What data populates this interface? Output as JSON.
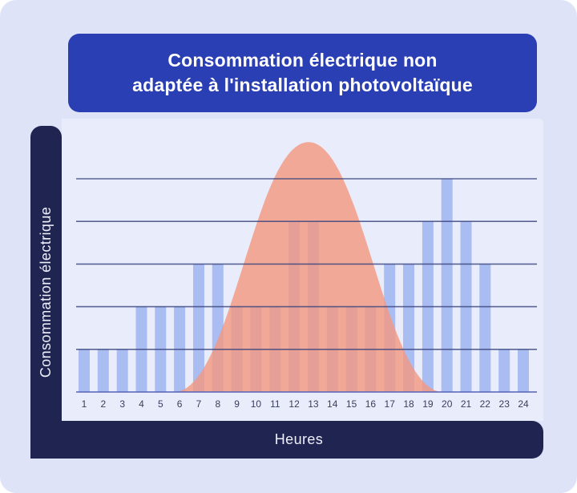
{
  "colors": {
    "card_bg": "#dfe3f7",
    "panel_bg": "#e9ecfb",
    "banner_bg": "#2a3fb3",
    "navy_bar": "#202451",
    "bar_fill": "#a9bdf2",
    "curve_fill": "#f4977e",
    "gridline": "#39457e",
    "baseline": "#5563b8",
    "tick_text": "#383e5c",
    "title_text": "#ffffff"
  },
  "banner": {
    "title_line1": "Consommation électrique non",
    "title_line2": "adaptée à l'installation photovoltaïque"
  },
  "axes": {
    "y_label": "Consommation électrique",
    "x_label": "Heures"
  },
  "chart_data": {
    "type": "bar",
    "title": "Consommation électrique non adaptée à l'installation photovoltaïque",
    "xlabel": "Heures",
    "ylabel": "Consommation électrique",
    "categories": [
      1,
      2,
      3,
      4,
      5,
      6,
      7,
      8,
      9,
      10,
      11,
      12,
      13,
      14,
      15,
      16,
      17,
      18,
      19,
      20,
      21,
      22,
      23,
      24
    ],
    "series": [
      {
        "name": "consommation-electrique",
        "type": "bar",
        "color": "#a9bdf2",
        "values": [
          1,
          1,
          1,
          2,
          2,
          2,
          3,
          3,
          2,
          2,
          2,
          4,
          4,
          2,
          2,
          2,
          3,
          3,
          4,
          5,
          4,
          3,
          1,
          1
        ]
      },
      {
        "name": "production-photovoltaique",
        "type": "area",
        "color": "#f4977e",
        "opacity": 0.8,
        "curve": {
          "start_hour": 5.7,
          "peak_hour": 12.75,
          "end_hour": 19.8,
          "peak_value": 5.86
        }
      }
    ],
    "ylim": [
      0,
      5.6
    ],
    "y_gridlines": [
      1,
      2,
      3,
      4,
      5
    ],
    "grid": true,
    "legend": "none"
  }
}
